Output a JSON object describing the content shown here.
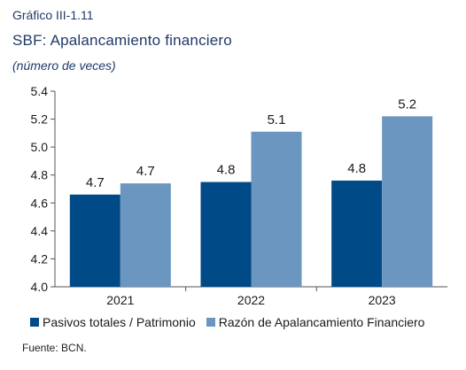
{
  "header": {
    "label": "Gráfico III-1.11",
    "title": "SBF: Apalancamiento financiero",
    "subtitle": "(número de veces)"
  },
  "source": "Fuente: BCN.",
  "chart_data": {
    "type": "bar",
    "categories": [
      "2021",
      "2022",
      "2023"
    ],
    "series": [
      {
        "name": "Pasivos totales / Patrimonio",
        "values": [
          4.66,
          4.75,
          4.76
        ],
        "labels": [
          "4.7",
          "4.8",
          "4.8"
        ],
        "color": "#004b87"
      },
      {
        "name": "Razón de Apalancamiento Financiero",
        "values": [
          4.74,
          5.11,
          5.22
        ],
        "labels": [
          "4.7",
          "5.1",
          "5.2"
        ],
        "color": "#6b96bf"
      }
    ],
    "ylim": [
      4.0,
      5.4
    ],
    "yticks": [
      "4.0",
      "4.2",
      "4.4",
      "4.6",
      "4.8",
      "5.0",
      "5.2",
      "5.4"
    ],
    "grid": false,
    "legend": "bottom"
  }
}
